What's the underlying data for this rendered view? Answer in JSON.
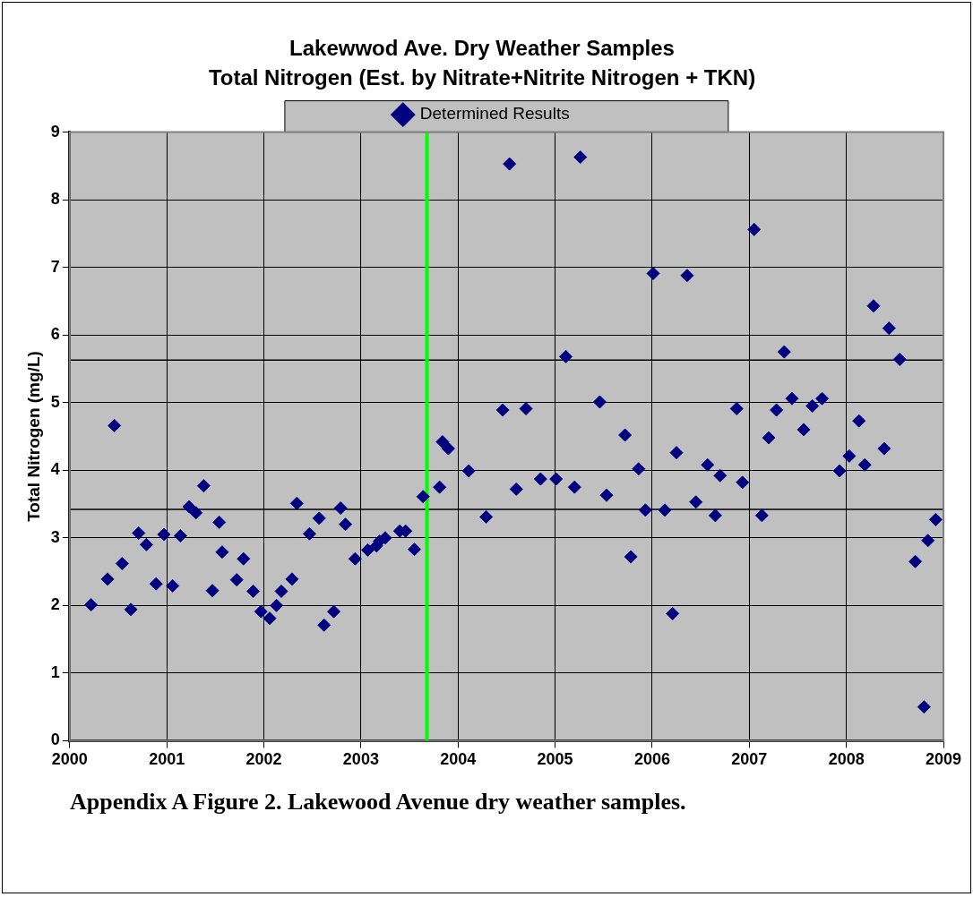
{
  "chart_data": {
    "type": "scatter",
    "title": "Lakewwod Ave. Dry Weather Samples",
    "subtitle": "Total Nitrogen (Est. by Nitrate+Nitrite Nitrogen + TKN)",
    "ylabel": "Total Nitrogen (mg/L)",
    "annotations": [
      "Appendix A Figure 2. Lakewood Avenue dry weather samples."
    ],
    "series": [
      {
        "name": "Determined Results",
        "color": "#000080",
        "x": [
          2000.22,
          2000.39,
          2000.46,
          2000.54,
          2000.63,
          2000.71,
          2000.79,
          2000.89,
          2000.97,
          2001.06,
          2001.14,
          2001.23,
          2001.3,
          2001.38,
          2001.47,
          2001.54,
          2001.57,
          2001.72,
          2001.79,
          2001.89,
          2001.97,
          2002.06,
          2002.13,
          2002.18,
          2002.29,
          2002.34,
          2002.47,
          2002.57,
          2002.62,
          2002.72,
          2002.79,
          2002.84,
          2002.94,
          2003.07,
          2003.16,
          2003.19,
          2003.25,
          2003.4,
          2003.46,
          2003.55,
          2003.64,
          2003.81,
          2003.84,
          2003.9,
          2004.11,
          2004.29,
          2004.46,
          2004.53,
          2004.6,
          2004.7,
          2004.85,
          2005.01,
          2005.11,
          2005.2,
          2005.26,
          2005.46,
          2005.53,
          2005.72,
          2005.78,
          2005.86,
          2005.93,
          2006.01,
          2006.13,
          2006.21,
          2006.25,
          2006.36,
          2006.45,
          2006.57,
          2006.65,
          2006.7,
          2006.87,
          2006.93,
          2007.05,
          2007.13,
          2007.2,
          2007.28,
          2007.36,
          2007.44,
          2007.56,
          2007.65,
          2007.75,
          2007.93,
          2008.03,
          2008.13,
          2008.19,
          2008.28,
          2008.39,
          2008.44,
          2008.55,
          2008.71,
          2008.8,
          2008.84,
          2008.92
        ],
        "values": [
          2.01,
          2.39,
          4.66,
          2.62,
          1.94,
          3.07,
          2.9,
          2.32,
          3.05,
          2.29,
          3.03,
          3.46,
          3.37,
          3.77,
          2.22,
          3.23,
          2.79,
          2.38,
          2.69,
          2.21,
          1.91,
          1.81,
          2.0,
          2.21,
          2.39,
          3.51,
          3.06,
          3.29,
          1.71,
          1.91,
          3.44,
          3.2,
          2.69,
          2.82,
          2.88,
          2.95,
          3.0,
          3.1,
          3.1,
          2.83,
          3.61,
          3.75,
          4.42,
          4.32,
          3.99,
          3.31,
          4.89,
          8.53,
          3.72,
          4.91,
          3.87,
          3.87,
          5.68,
          3.75,
          8.63,
          5.01,
          3.63,
          4.52,
          2.72,
          4.02,
          3.41,
          6.91,
          3.41,
          1.88,
          4.26,
          6.88,
          3.53,
          4.08,
          3.33,
          3.92,
          4.91,
          3.82,
          7.56,
          3.33,
          4.48,
          4.89,
          5.75,
          5.06,
          4.6,
          4.95,
          5.06,
          3.99,
          4.21,
          4.73,
          4.08,
          6.43,
          4.32,
          6.1,
          5.64,
          2.65,
          0.5,
          2.96,
          3.27
        ]
      }
    ],
    "xlim": [
      2000,
      2009
    ],
    "xticks": [
      2000,
      2001,
      2002,
      2003,
      2004,
      2005,
      2006,
      2007,
      2008,
      2009
    ],
    "ylim": [
      0,
      9
    ],
    "yticks": [
      0,
      1,
      2,
      3,
      4,
      5,
      6,
      7,
      8,
      9
    ],
    "ref_lines": [
      {
        "axis": "y",
        "value": 5.63,
        "color": "#000000"
      },
      {
        "axis": "y",
        "value": 3.42,
        "color": "#000000"
      },
      {
        "axis": "x",
        "value": 2003.68,
        "color": "#00ff00"
      }
    ],
    "grid": true,
    "legend": "top",
    "marker": "diamond"
  }
}
